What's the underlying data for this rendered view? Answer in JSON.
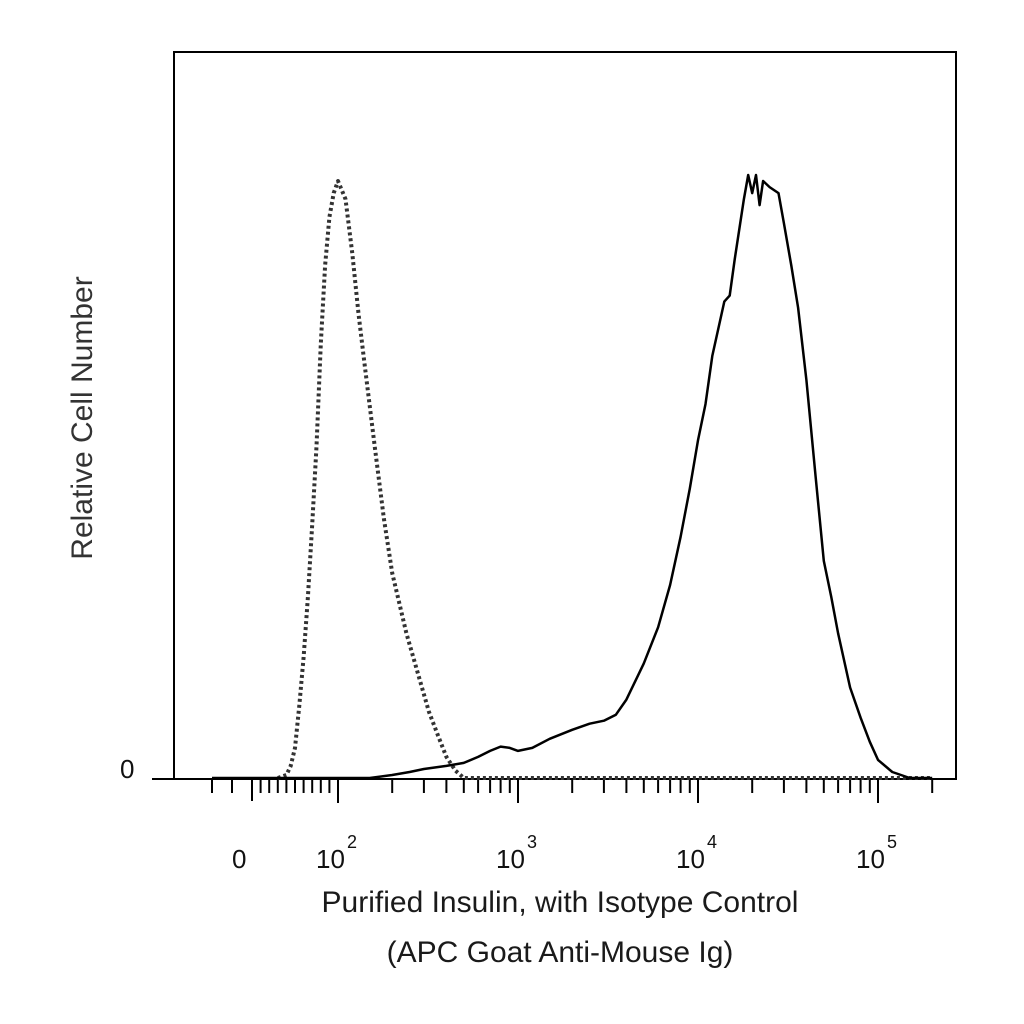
{
  "chart_data": {
    "type": "line",
    "title": "",
    "xlabel": "Purified Insulin, with Isotype Control",
    "xlabel_line2": "(APC Goat Anti-Mouse Ig)",
    "ylabel": "Relative Cell Number",
    "x_scale": "biexponential",
    "xlim": [
      -20,
      200000
    ],
    "ylim": [
      0,
      1
    ],
    "y_tick_label": "0",
    "x_tick_labels": [
      {
        "value": 0,
        "base": "0",
        "exp": ""
      },
      {
        "value": 100,
        "base": "10",
        "exp": "2"
      },
      {
        "value": 1000,
        "base": "10",
        "exp": "3"
      },
      {
        "value": 10000,
        "base": "10",
        "exp": "4"
      },
      {
        "value": 100000,
        "base": "10",
        "exp": "5"
      }
    ],
    "grid": false,
    "legend": "none",
    "series": [
      {
        "style": "dotted",
        "color": "#333333",
        "points": [
          [
            30,
            0.0
          ],
          [
            40,
            0.005
          ],
          [
            45,
            0.02
          ],
          [
            50,
            0.05
          ],
          [
            55,
            0.12
          ],
          [
            60,
            0.2
          ],
          [
            65,
            0.3
          ],
          [
            70,
            0.42
          ],
          [
            75,
            0.55
          ],
          [
            80,
            0.72
          ],
          [
            85,
            0.85
          ],
          [
            90,
            0.93
          ],
          [
            95,
            0.97
          ],
          [
            100,
            0.99
          ],
          [
            110,
            0.96
          ],
          [
            120,
            0.87
          ],
          [
            130,
            0.77
          ],
          [
            140,
            0.69
          ],
          [
            160,
            0.55
          ],
          [
            180,
            0.43
          ],
          [
            200,
            0.34
          ],
          [
            240,
            0.24
          ],
          [
            280,
            0.17
          ],
          [
            320,
            0.11
          ],
          [
            360,
            0.07
          ],
          [
            400,
            0.035
          ],
          [
            450,
            0.012
          ],
          [
            500,
            0.0
          ],
          [
            1000,
            0.0
          ],
          [
            10000,
            0.0
          ],
          [
            100000,
            0.0
          ],
          [
            200000,
            0.0
          ]
        ]
      },
      {
        "style": "solid",
        "color": "#000000",
        "points": [
          [
            -20,
            0.0
          ],
          [
            150,
            0.0
          ],
          [
            200,
            0.005
          ],
          [
            250,
            0.01
          ],
          [
            300,
            0.015
          ],
          [
            400,
            0.02
          ],
          [
            500,
            0.025
          ],
          [
            600,
            0.035
          ],
          [
            700,
            0.045
          ],
          [
            800,
            0.052
          ],
          [
            900,
            0.05
          ],
          [
            1000,
            0.045
          ],
          [
            1200,
            0.05
          ],
          [
            1500,
            0.065
          ],
          [
            2000,
            0.08
          ],
          [
            2500,
            0.09
          ],
          [
            3000,
            0.095
          ],
          [
            3500,
            0.105
          ],
          [
            4000,
            0.13
          ],
          [
            5000,
            0.19
          ],
          [
            6000,
            0.25
          ],
          [
            7000,
            0.32
          ],
          [
            8000,
            0.4
          ],
          [
            9000,
            0.48
          ],
          [
            10000,
            0.56
          ],
          [
            11000,
            0.62
          ],
          [
            12000,
            0.7
          ],
          [
            14000,
            0.79
          ],
          [
            15000,
            0.8
          ],
          [
            16000,
            0.86
          ],
          [
            18000,
            0.96
          ],
          [
            19000,
            1.0
          ],
          [
            20000,
            0.97
          ],
          [
            21000,
            1.0
          ],
          [
            22000,
            0.95
          ],
          [
            23000,
            0.99
          ],
          [
            25000,
            0.98
          ],
          [
            28000,
            0.97
          ],
          [
            30000,
            0.92
          ],
          [
            33000,
            0.85
          ],
          [
            36000,
            0.78
          ],
          [
            40000,
            0.66
          ],
          [
            45000,
            0.5
          ],
          [
            50000,
            0.36
          ],
          [
            55000,
            0.3
          ],
          [
            60000,
            0.24
          ],
          [
            70000,
            0.15
          ],
          [
            80000,
            0.1
          ],
          [
            90000,
            0.06
          ],
          [
            100000,
            0.03
          ],
          [
            120000,
            0.01
          ],
          [
            150000,
            0.0
          ],
          [
            200000,
            0.0
          ]
        ]
      }
    ]
  }
}
